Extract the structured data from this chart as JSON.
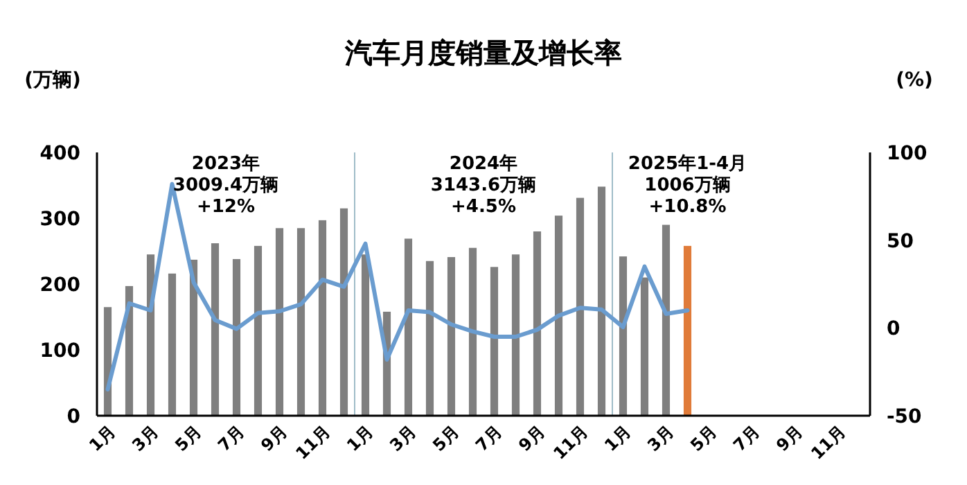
{
  "chart_data": {
    "type": "bar",
    "title": "汽车月度销量及增长率",
    "ylabel": "(万辆)",
    "y2label": "(%)",
    "categories": [
      "1月",
      null,
      "3月",
      null,
      "5月",
      null,
      "7月",
      null,
      "9月",
      null,
      "11月",
      null,
      "1月",
      null,
      "3月",
      null,
      "5月",
      null,
      "7月",
      null,
      "9月",
      null,
      "11月",
      null,
      "1月",
      null,
      "3月",
      null,
      "5月",
      null,
      "7月",
      null,
      "9月",
      null,
      "11月",
      null
    ],
    "series": [
      {
        "colors": [
          "#7f7f7f",
          "#7f7f7f",
          "#7f7f7f",
          "#7f7f7f",
          "#7f7f7f",
          "#7f7f7f",
          "#7f7f7f",
          "#7f7f7f",
          "#7f7f7f",
          "#7f7f7f",
          "#7f7f7f",
          "#7f7f7f",
          "#7f7f7f",
          "#7f7f7f",
          "#7f7f7f",
          "#7f7f7f",
          "#7f7f7f",
          "#7f7f7f",
          "#7f7f7f",
          "#7f7f7f",
          "#7f7f7f",
          "#7f7f7f",
          "#7f7f7f",
          "#7f7f7f",
          "#7f7f7f",
          "#7f7f7f",
          "#7f7f7f",
          "#e07b39",
          null,
          null,
          null,
          null,
          null,
          null,
          null,
          null
        ],
        "values": [
          165,
          197,
          245,
          216,
          237,
          262,
          238,
          258,
          285,
          285,
          297,
          315,
          245,
          158,
          269,
          235,
          241,
          255,
          226,
          245,
          280,
          304,
          331,
          348,
          242,
          210,
          290,
          258,
          null,
          null,
          null,
          null,
          null,
          null,
          null,
          null
        ]
      },
      {
        "type": "line",
        "axis": "y2",
        "color": "#6a9ccf",
        "values": [
          -35,
          14,
          10,
          82,
          26,
          4.5,
          -0.5,
          8.5,
          9.5,
          13.5,
          27.5,
          23.5,
          48,
          -18,
          10,
          9,
          2,
          -2,
          -5,
          -5,
          -1,
          7,
          11.5,
          10.5,
          0.5,
          35,
          8,
          10,
          null,
          null,
          null,
          null,
          null,
          null,
          null,
          null
        ]
      }
    ],
    "ylim": [
      0,
      400
    ],
    "yticks": [
      0,
      100,
      200,
      300,
      400
    ],
    "y2lim": [
      -50,
      100
    ],
    "y2ticks": [
      -50,
      0,
      50,
      100
    ],
    "annotations": [
      "2023年\n3009.4万辆\n+12%",
      "2024年\n3143.6万辆\n+4.5%",
      "2025年1-4月\n1006万辆\n+10.8%"
    ],
    "grid": false
  }
}
